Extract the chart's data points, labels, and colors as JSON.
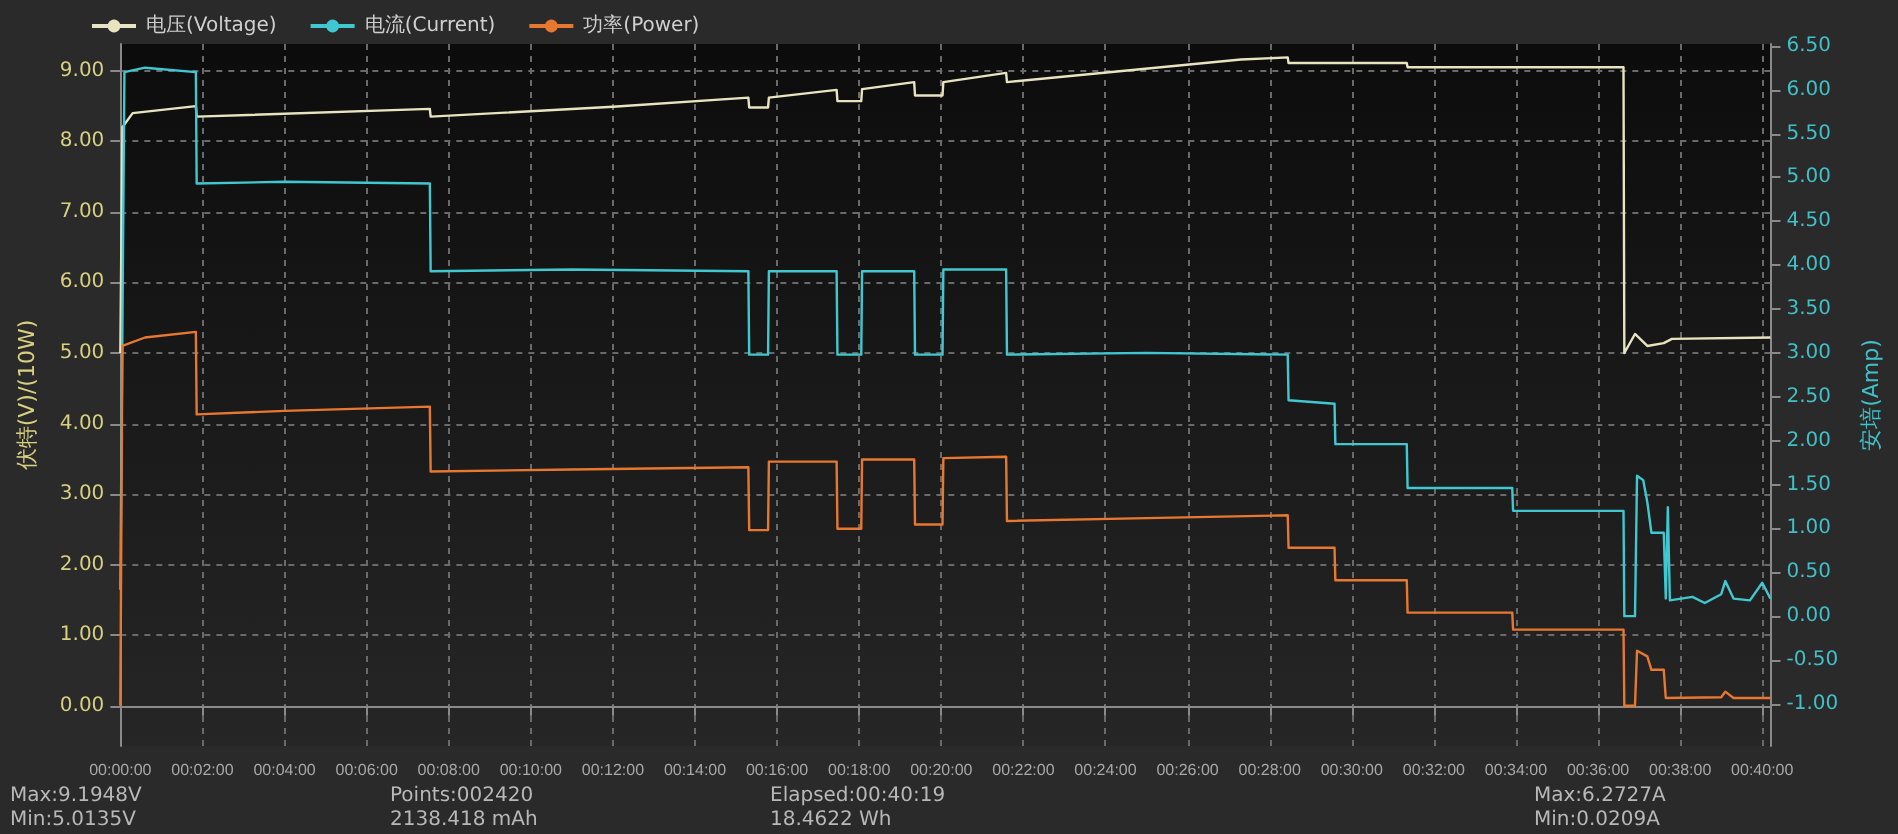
{
  "chart_data": {
    "type": "line",
    "xlabel": null,
    "ylabel": "伏特(V)/(10W)",
    "y2label": "安培(Amp)",
    "xlim": [
      0,
      40.2
    ],
    "xticks": [
      {
        "value": 0,
        "label": "00:00:00"
      },
      {
        "value": 2,
        "label": "00:02:00"
      },
      {
        "value": 4,
        "label": "00:04:00"
      },
      {
        "value": 6,
        "label": "00:06:00"
      },
      {
        "value": 8,
        "label": "00:08:00"
      },
      {
        "value": 10,
        "label": "00:10:00"
      },
      {
        "value": 12,
        "label": "00:12:00"
      },
      {
        "value": 14,
        "label": "00:14:00"
      },
      {
        "value": 16,
        "label": "00:16:00"
      },
      {
        "value": 18,
        "label": "00:18:00"
      },
      {
        "value": 20,
        "label": "00:20:00"
      },
      {
        "value": 22,
        "label": "00:22:00"
      },
      {
        "value": 24,
        "label": "00:24:00"
      },
      {
        "value": 26,
        "label": "00:26:00"
      },
      {
        "value": 28,
        "label": "00:28:00"
      },
      {
        "value": 30,
        "label": "00:30:00"
      },
      {
        "value": 32,
        "label": "00:32:00"
      },
      {
        "value": 34,
        "label": "00:34:00"
      },
      {
        "value": 36,
        "label": "00:36:00"
      },
      {
        "value": 38,
        "label": "00:38:00"
      },
      {
        "value": 40,
        "label": "00:40:00"
      }
    ],
    "ylim": [
      -0.57,
      9.38
    ],
    "yticks": [
      {
        "value": 0,
        "label": "0.00"
      },
      {
        "value": 1,
        "label": "1.00"
      },
      {
        "value": 2,
        "label": "2.00"
      },
      {
        "value": 3,
        "label": "3.00"
      },
      {
        "value": 4,
        "label": "4.00"
      },
      {
        "value": 5,
        "label": "5.00"
      },
      {
        "value": 6,
        "label": "6.00"
      },
      {
        "value": 7,
        "label": "7.00"
      },
      {
        "value": 8,
        "label": "8.00"
      },
      {
        "value": 9,
        "label": "9.00"
      }
    ],
    "y2lim": [
      -1.48,
      6.52
    ],
    "y2ticks": [
      {
        "value": -1,
        "label": "-1.00"
      },
      {
        "value": -0.5,
        "label": "-0.50"
      },
      {
        "value": 0,
        "label": "0.00"
      },
      {
        "value": 0.5,
        "label": "0.50"
      },
      {
        "value": 1,
        "label": "1.00"
      },
      {
        "value": 1.5,
        "label": "1.50"
      },
      {
        "value": 2,
        "label": "2.00"
      },
      {
        "value": 2.5,
        "label": "2.50"
      },
      {
        "value": 3,
        "label": "3.00"
      },
      {
        "value": 3.5,
        "label": "3.50"
      },
      {
        "value": 4,
        "label": "4.00"
      },
      {
        "value": 4.5,
        "label": "4.50"
      },
      {
        "value": 5,
        "label": "5.00"
      },
      {
        "value": 5.5,
        "label": "5.50"
      },
      {
        "value": 6,
        "label": "6.00"
      },
      {
        "value": 6.5,
        "label": "6.50"
      }
    ],
    "grid": true,
    "legend": "top left",
    "marker": "none",
    "line_style": "solid",
    "series": [
      {
        "name": "电压(Voltage)",
        "color": "#e8e4c0",
        "x": [
          0,
          0.05,
          0.3,
          1.84,
          1.86,
          7.54,
          7.56,
          12,
          15.3,
          15.32,
          15.78,
          15.8,
          17.45,
          17.47,
          18.05,
          18.07,
          19.34,
          19.36,
          20.03,
          20.05,
          21.58,
          21.6,
          27.3,
          28.44,
          28.46,
          31.34,
          31.36,
          36.62,
          36.64,
          36.9,
          37.2,
          37.6,
          37.8,
          40.2
        ],
        "values": [
          5.0,
          8.2,
          8.4,
          8.5,
          8.35,
          8.46,
          8.35,
          8.49,
          8.62,
          8.48,
          8.48,
          8.62,
          8.73,
          8.57,
          8.57,
          8.74,
          8.84,
          8.65,
          8.65,
          8.84,
          8.97,
          8.84,
          9.16,
          9.19,
          9.11,
          9.11,
          9.05,
          9.05,
          5.0,
          5.27,
          5.1,
          5.14,
          5.2,
          5.22
        ]
      },
      {
        "name": "电流(Current)",
        "color": "#40c8d0",
        "axis": "y2",
        "x": [
          0,
          0.1,
          0.6,
          1.84,
          1.86,
          4,
          7.54,
          7.56,
          11,
          15.3,
          15.32,
          15.78,
          15.8,
          17.45,
          17.47,
          18.05,
          18.07,
          19.34,
          19.36,
          20.03,
          20.05,
          21.58,
          21.6,
          25,
          28.44,
          28.46,
          29.58,
          29.6,
          31.34,
          31.36,
          33.91,
          33.93,
          36.62,
          36.64,
          36.9,
          36.95,
          37.1,
          37.2,
          37.3,
          37.6,
          37.65,
          37.7,
          37.75,
          38.3,
          38.6,
          39.0,
          39.1,
          39.3,
          39.7,
          40.0,
          40.2
        ],
        "values": [
          0.3,
          6.2,
          6.25,
          6.2,
          4.93,
          4.95,
          4.93,
          3.93,
          3.95,
          3.93,
          2.98,
          2.98,
          3.93,
          3.93,
          2.98,
          2.98,
          3.93,
          3.93,
          2.98,
          2.98,
          3.95,
          3.95,
          2.98,
          3.0,
          2.98,
          2.46,
          2.42,
          1.96,
          1.96,
          1.46,
          1.46,
          1.2,
          1.2,
          0.0,
          0.0,
          1.6,
          1.55,
          1.3,
          0.95,
          0.95,
          0.2,
          1.24,
          0.18,
          0.22,
          0.15,
          0.25,
          0.4,
          0.2,
          0.18,
          0.38,
          0.2
        ]
      },
      {
        "name": "功率(Power)",
        "color": "#e87830",
        "x": [
          0,
          0.05,
          0.6,
          1.84,
          1.86,
          4,
          7.54,
          7.56,
          11,
          15.3,
          15.32,
          15.78,
          15.8,
          17.45,
          17.47,
          18.05,
          18.07,
          19.34,
          19.36,
          20.03,
          20.05,
          21.58,
          21.6,
          25,
          28.44,
          28.46,
          29.58,
          29.6,
          31.34,
          31.36,
          33.91,
          33.93,
          36.62,
          36.64,
          36.9,
          36.95,
          37.2,
          37.3,
          37.6,
          37.65,
          39.0,
          39.1,
          39.3,
          40.2
        ],
        "values": [
          0,
          5.1,
          5.22,
          5.3,
          4.13,
          4.18,
          4.24,
          3.32,
          3.35,
          3.38,
          2.49,
          2.49,
          3.46,
          3.46,
          2.51,
          2.51,
          3.49,
          3.49,
          2.57,
          2.57,
          3.51,
          3.53,
          2.62,
          2.66,
          2.7,
          2.24,
          2.24,
          1.78,
          1.78,
          1.32,
          1.32,
          1.08,
          1.08,
          0.0,
          0.0,
          0.78,
          0.7,
          0.51,
          0.51,
          0.11,
          0.12,
          0.2,
          0.11,
          0.11
        ]
      }
    ],
    "annotations": [
      "Max:9.1948V",
      "Min:5.0135V",
      "Points:002420",
      "2138.418 mAh",
      "Elapsed:00:40:19",
      "18.4622 Wh",
      "Max:6.2727A",
      "Min:0.0209A"
    ]
  }
}
